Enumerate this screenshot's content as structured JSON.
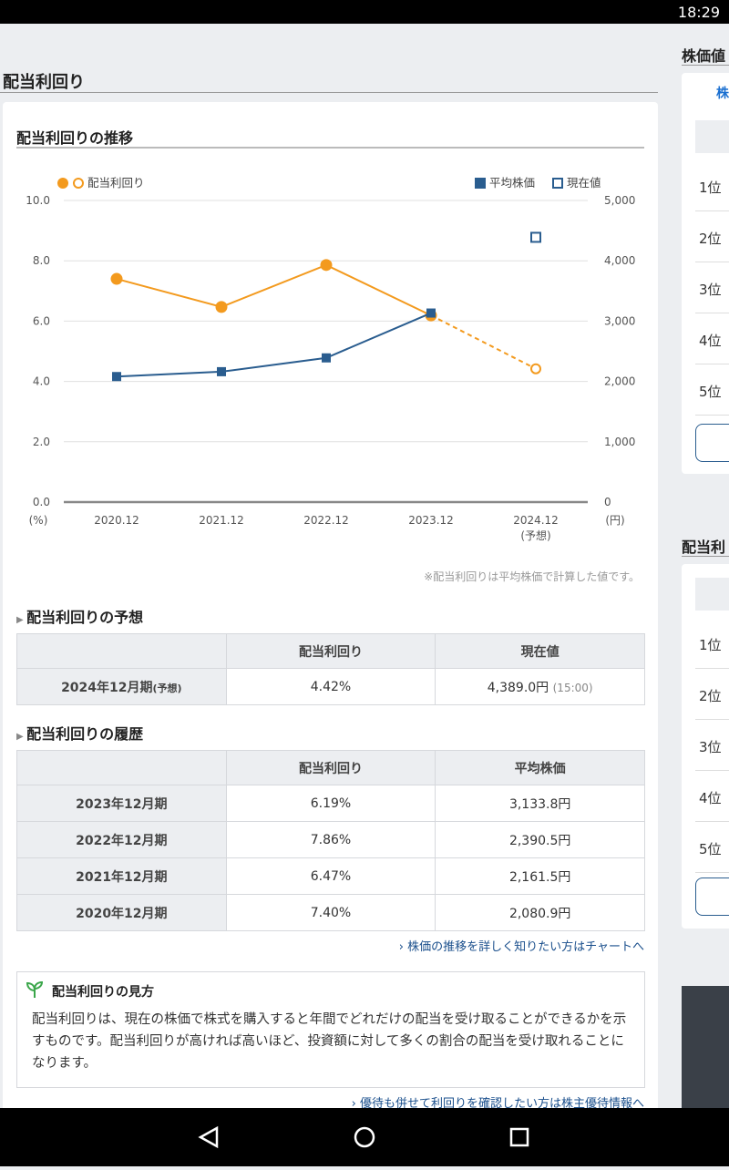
{
  "status_bar": {
    "time": "18:29"
  },
  "section_title": "配当利回り",
  "card_title": "配当利回りの推移",
  "chart_data": {
    "type": "line",
    "categories": [
      "2020.12",
      "2021.12",
      "2022.12",
      "2023.12",
      "2024.12"
    ],
    "category_notes": [
      null,
      null,
      null,
      null,
      "(予想)"
    ],
    "series": [
      {
        "name": "配当利回り",
        "color": "#f39a1e",
        "marker": "circle",
        "dashed_from": 3,
        "values": [
          7.4,
          6.47,
          7.86,
          6.19,
          4.42
        ]
      },
      {
        "name": "平均株価",
        "color": "#2a5d8f",
        "marker": "square",
        "axis": "y2",
        "values": [
          2080.9,
          2161.5,
          2390.5,
          3133.8,
          null
        ]
      },
      {
        "name": "現在値",
        "color": "#2a5d8f",
        "marker": "square-hollow",
        "axis": "y2",
        "values": [
          null,
          null,
          null,
          null,
          4389.0
        ]
      }
    ],
    "ylim": [
      0,
      10
    ],
    "yticks": [
      {
        "value": 0,
        "label": "0.0"
      },
      {
        "value": 2,
        "label": "2.0"
      },
      {
        "value": 4,
        "label": "4.0"
      },
      {
        "value": 6,
        "label": "6.0"
      },
      {
        "value": 8,
        "label": "8.0"
      },
      {
        "value": 10,
        "label": "10.0"
      }
    ],
    "y2lim": [
      0,
      5000
    ],
    "y2ticks": [
      0,
      {
        "value": 1000,
        "label": "1,000"
      },
      {
        "value": 2000,
        "label": "2,000"
      },
      {
        "value": 3000,
        "label": "3,000"
      },
      {
        "value": 4000,
        "label": "4,000"
      },
      {
        "value": 5000,
        "label": "5,000"
      }
    ],
    "y_unit": "(%)",
    "y2_unit": "(円)",
    "grid": true,
    "note": "※配当利回りは平均株価で計算した値です。"
  },
  "forecast": {
    "title": "配当利回りの予想",
    "headers": [
      "配当利回り",
      "現在値"
    ],
    "row": {
      "period": "2024年12月期",
      "period_note": "(予想)",
      "yield": "4.42%",
      "price": "4,389.0円",
      "time": "(15:00)"
    }
  },
  "history": {
    "title": "配当利回りの履歴",
    "headers": [
      "配当利回り",
      "平均株価"
    ],
    "rows": [
      [
        "2023年12月期",
        "6.19%",
        "3,133.8円"
      ],
      [
        "2022年12月期",
        "7.86%",
        "2,390.5円"
      ],
      [
        "2021年12月期",
        "6.47%",
        "2,161.5円"
      ],
      [
        "2020年12月期",
        "7.40%",
        "2,080.9円"
      ]
    ]
  },
  "links": [
    "株価の推移を詳しく知りたい方はチャートへ",
    "優待も併せて利回りを確認したい方は株主優待情報へ"
  ],
  "explainer": {
    "title": "配当利回りの見方",
    "body": "配当利回りは、現在の株価で株式を購入すると年間でどれだけの配当を受け取ることができるかを示すものです。配当利回りが高ければ高いほど、投資額に対して多くの割合の配当を受け取れることになります。"
  },
  "sidebar": [
    {
      "title": "株価値",
      "tab": "株",
      "ranks": [
        "1位",
        "2位",
        "3位",
        "4位",
        "5位"
      ]
    },
    {
      "title": "配当利",
      "ranks": [
        "1位",
        "2位",
        "3位",
        "4位",
        "5位"
      ]
    }
  ]
}
